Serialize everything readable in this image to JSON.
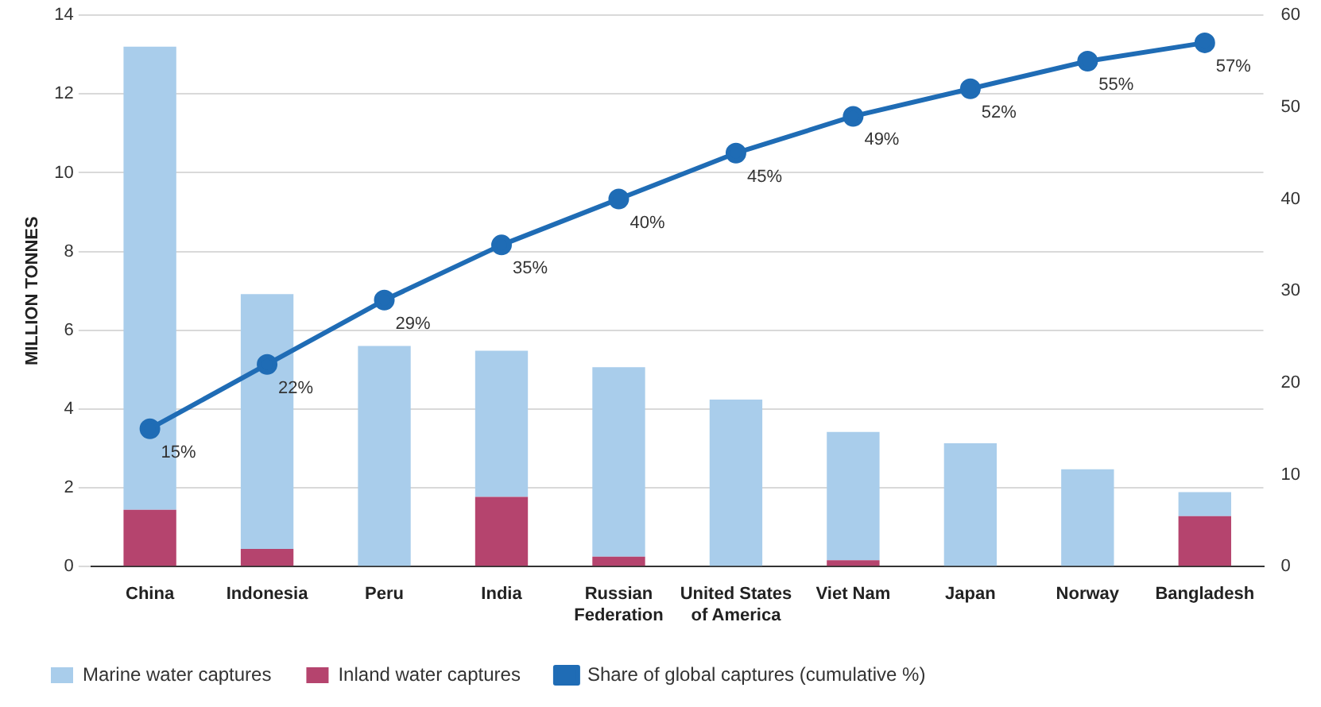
{
  "chart_data": {
    "type": "bar",
    "stacked": true,
    "ylabel": "MILLION TONNES",
    "categories": [
      "China",
      "Indonesia",
      "Peru",
      "India",
      "Russian Federation",
      "United States of America",
      "Viet Nam",
      "Japan",
      "Norway",
      "Bangladesh"
    ],
    "series": [
      {
        "name": "Inland water captures",
        "color": "#b5446e",
        "values": [
          1.44,
          0.45,
          0,
          1.77,
          0.25,
          0,
          0.16,
          0,
          0,
          1.28
        ]
      },
      {
        "name": "Marine water captures",
        "color": "#a9cdeb",
        "values": [
          11.76,
          6.47,
          5.6,
          3.71,
          4.81,
          4.24,
          3.26,
          3.13,
          2.47,
          0.61
        ]
      },
      {
        "name": "Share of global captures (cumulative %)",
        "type": "line",
        "axis": "y2",
        "color": "#1f6cb5",
        "values": [
          15,
          22,
          29,
          35,
          40,
          45,
          49,
          52,
          55,
          57
        ],
        "value_labels": [
          "15%",
          "22%",
          "29%",
          "35%",
          "40%",
          "45%",
          "49%",
          "52%",
          "55%",
          "57%"
        ]
      }
    ],
    "ylim": [
      0,
      14
    ],
    "yticks": [
      0,
      2,
      4,
      6,
      8,
      10,
      12,
      14
    ],
    "y2lim": [
      0,
      60
    ],
    "y2ticks": [
      0,
      10,
      20,
      30,
      40,
      50,
      60
    ],
    "grid": "y",
    "legend": "bottom",
    "marker": "circle"
  }
}
